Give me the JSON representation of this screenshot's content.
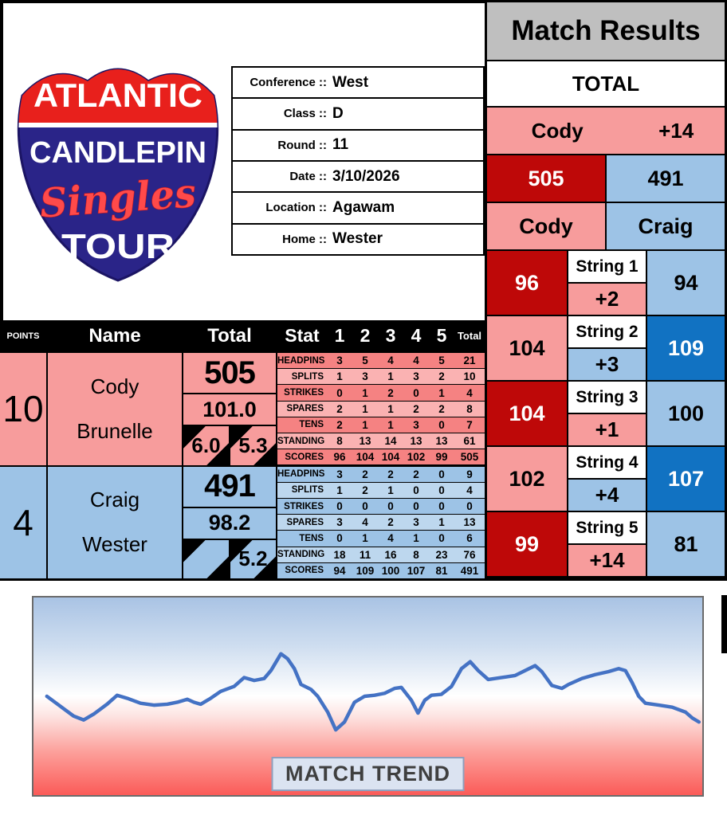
{
  "logo": {
    "line1": "ATLANTIC",
    "line2": "CANDLEPIN",
    "line3": "Singles",
    "line4": "TOUR"
  },
  "title": "Match Results",
  "match_info": {
    "rows": [
      {
        "label": "Conference ::",
        "value": "West"
      },
      {
        "label": "Class ::",
        "value": "D"
      },
      {
        "label": "Round ::",
        "value": "11"
      },
      {
        "label": "Date ::",
        "value": "3/10/2026"
      },
      {
        "label": "Location ::",
        "value": "Agawam"
      },
      {
        "label": "Home ::",
        "value": "Wester"
      }
    ]
  },
  "totals": {
    "heading": "TOTAL",
    "leader": "Cody",
    "margin": "+14",
    "home_total": "505",
    "away_total": "491",
    "home_name": "Cody",
    "away_name": "Craig"
  },
  "strings": [
    {
      "label": "String 1",
      "home": "96",
      "diff": "+2",
      "away": "94",
      "home_class": "c-darkred",
      "diff_class": "c-pink",
      "away_class": "c-lightblue"
    },
    {
      "label": "String 2",
      "home": "104",
      "diff": "+3",
      "away": "109",
      "home_class": "c-pink",
      "diff_class": "c-lightblue",
      "away_class": "c-darkblue"
    },
    {
      "label": "String 3",
      "home": "104",
      "diff": "+1",
      "away": "100",
      "home_class": "c-darkred",
      "diff_class": "c-pink",
      "away_class": "c-lightblue"
    },
    {
      "label": "String 4",
      "home": "102",
      "diff": "+4",
      "away": "107",
      "home_class": "c-pink",
      "diff_class": "c-lightblue",
      "away_class": "c-darkblue"
    },
    {
      "label": "String 5",
      "home": "99",
      "diff": "+14",
      "away": "81",
      "home_class": "c-darkred",
      "diff_class": "c-pink",
      "away_class": "c-lightblue"
    }
  ],
  "score_table": {
    "headers": {
      "points": "POINTS",
      "name": "Name",
      "total": "Total",
      "stat": "Stat",
      "games": [
        "1",
        "2",
        "3",
        "4",
        "5"
      ],
      "game_total": "Total"
    },
    "players": [
      {
        "points": "10",
        "first_name": "Cody",
        "last_name": "Brunelle",
        "total": "505",
        "average": "101.0",
        "mini_left": "6.0",
        "mini_right": "5.3",
        "stats": [
          {
            "label": "HEADPINS",
            "values": [
              "3",
              "5",
              "4",
              "4",
              "5"
            ],
            "total": "21"
          },
          {
            "label": "SPLITS",
            "values": [
              "1",
              "3",
              "1",
              "3",
              "2"
            ],
            "total": "10"
          },
          {
            "label": "STRIKES",
            "values": [
              "0",
              "1",
              "2",
              "0",
              "1"
            ],
            "total": "4"
          },
          {
            "label": "SPARES",
            "values": [
              "2",
              "1",
              "1",
              "2",
              "2"
            ],
            "total": "8"
          },
          {
            "label": "TENS",
            "values": [
              "2",
              "1",
              "1",
              "3",
              "0"
            ],
            "total": "7"
          },
          {
            "label": "STANDING",
            "values": [
              "8",
              "13",
              "14",
              "13",
              "13"
            ],
            "total": "61"
          },
          {
            "label": "SCORES",
            "values": [
              "96",
              "104",
              "104",
              "102",
              "99"
            ],
            "total": "505"
          }
        ]
      },
      {
        "points": "4",
        "first_name": "Craig",
        "last_name": "Wester",
        "total": "491",
        "average": "98.2",
        "mini_left": "",
        "mini_right": "5.2",
        "stats": [
          {
            "label": "HEADPINS",
            "values": [
              "3",
              "2",
              "2",
              "2",
              "0"
            ],
            "total": "9"
          },
          {
            "label": "SPLITS",
            "values": [
              "1",
              "2",
              "1",
              "0",
              "0"
            ],
            "total": "4"
          },
          {
            "label": "STRIKES",
            "values": [
              "0",
              "0",
              "0",
              "0",
              "0"
            ],
            "total": "0"
          },
          {
            "label": "SPARES",
            "values": [
              "3",
              "4",
              "2",
              "3",
              "1"
            ],
            "total": "13"
          },
          {
            "label": "TENS",
            "values": [
              "0",
              "1",
              "4",
              "1",
              "0"
            ],
            "total": "6"
          },
          {
            "label": "STANDING",
            "values": [
              "18",
              "11",
              "16",
              "8",
              "23"
            ],
            "total": "76"
          },
          {
            "label": "SCORES",
            "values": [
              "94",
              "109",
              "100",
              "107",
              "81"
            ],
            "total": "491"
          }
        ]
      }
    ]
  },
  "trend": {
    "label": "MATCH TREND"
  },
  "chart_data": {
    "type": "line",
    "title": "MATCH TREND",
    "notes": "decorative smoothed momentum line; no axes, ticks or data labels shown; background gradient blue(top)-white-red(bottom)",
    "legend": "none",
    "grid": "off",
    "line_color": "#4472C4",
    "points_pct": [
      [
        2,
        50
      ],
      [
        4,
        55
      ],
      [
        6,
        60
      ],
      [
        7.5,
        62
      ],
      [
        9,
        59
      ],
      [
        11,
        54
      ],
      [
        12.5,
        49.5
      ],
      [
        14,
        51
      ],
      [
        16,
        53.5
      ],
      [
        18,
        54.5
      ],
      [
        20,
        54
      ],
      [
        21.5,
        53
      ],
      [
        23,
        51.5
      ],
      [
        24,
        53
      ],
      [
        25,
        54
      ],
      [
        26.5,
        51
      ],
      [
        28,
        47.5
      ],
      [
        30,
        45
      ],
      [
        31.5,
        40.5
      ],
      [
        33,
        42
      ],
      [
        34.5,
        41
      ],
      [
        35.5,
        37
      ],
      [
        37,
        28.5
      ],
      [
        38,
        31
      ],
      [
        39,
        36
      ],
      [
        40,
        44
      ],
      [
        41.5,
        46.5
      ],
      [
        42.5,
        50
      ],
      [
        44,
        58
      ],
      [
        45.2,
        67
      ],
      [
        46.5,
        63
      ],
      [
        48,
        53
      ],
      [
        49.5,
        50
      ],
      [
        51,
        49.5
      ],
      [
        52.5,
        48.5
      ],
      [
        54,
        46
      ],
      [
        55,
        45.5
      ],
      [
        56.5,
        52
      ],
      [
        57.5,
        58.5
      ],
      [
        58.5,
        52
      ],
      [
        59.5,
        49.5
      ],
      [
        61,
        49
      ],
      [
        62.5,
        45
      ],
      [
        64,
        36
      ],
      [
        65.3,
        32.5
      ],
      [
        66.5,
        37
      ],
      [
        68,
        41.5
      ],
      [
        70,
        40.5
      ],
      [
        72,
        39.5
      ],
      [
        73.5,
        37
      ],
      [
        75,
        34.5
      ],
      [
        76,
        37.5
      ],
      [
        77.5,
        44.5
      ],
      [
        79,
        46
      ],
      [
        80,
        44
      ],
      [
        82,
        41
      ],
      [
        84,
        39
      ],
      [
        86,
        37.5
      ],
      [
        87.5,
        36
      ],
      [
        88.5,
        37
      ],
      [
        89.5,
        43
      ],
      [
        90.5,
        50
      ],
      [
        91.5,
        53.5
      ],
      [
        93.5,
        54.5
      ],
      [
        95.5,
        55.5
      ],
      [
        97.5,
        58
      ],
      [
        98.5,
        61
      ],
      [
        99.5,
        63
      ]
    ]
  },
  "colors": {
    "dark_red": "#BE0808",
    "pink": "#F79C9C",
    "stat_pink_dark": "#F58282",
    "stat_pink_light": "#FAB2B2",
    "light_blue": "#9DC3E6",
    "stat_blue_light": "#BDD7EE",
    "dark_blue": "#1172C2",
    "header_gray": "#BFBFBF",
    "trend_line": "#4472C4",
    "logo_red": "#E8201C",
    "logo_blue": "#2A2488"
  }
}
